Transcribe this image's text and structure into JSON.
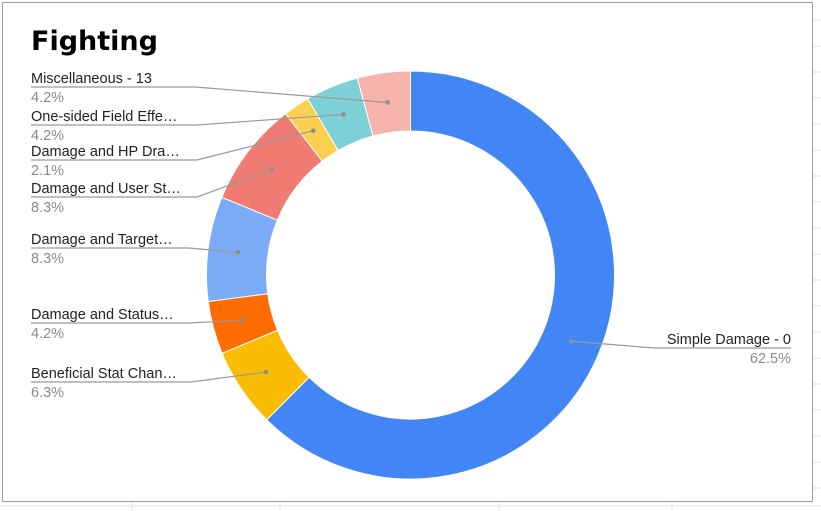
{
  "chart_data": {
    "type": "pie",
    "donut": true,
    "title": "Fighting",
    "legend": "labels-with-leader-lines",
    "slices": [
      {
        "label": "Simple Damage - 0",
        "percent_label": "62.5%",
        "value": 62.5,
        "color": "#4285f4"
      },
      {
        "label": "Beneficial Stat Chan…",
        "percent_label": "6.3%",
        "value": 6.3,
        "color": "#fbbc04"
      },
      {
        "label": "Damage and Status…",
        "percent_label": "4.2%",
        "value": 4.2,
        "color": "#ff6d01"
      },
      {
        "label": "Damage and Target…",
        "percent_label": "8.3%",
        "value": 8.3,
        "color": "#7baaf7"
      },
      {
        "label": "Damage and User St…",
        "percent_label": "8.3%",
        "value": 8.3,
        "color": "#f07b72"
      },
      {
        "label": "Damage and HP Dra…",
        "percent_label": "2.1%",
        "value": 2.1,
        "color": "#fcd04f"
      },
      {
        "label": "One-sided Field Effe…",
        "percent_label": "4.2%",
        "value": 4.2,
        "color": "#7ed0d7"
      },
      {
        "label": "Miscellaneous - 13",
        "percent_label": "4.2%",
        "value": 4.2,
        "color": "#f6b4ac"
      }
    ]
  }
}
